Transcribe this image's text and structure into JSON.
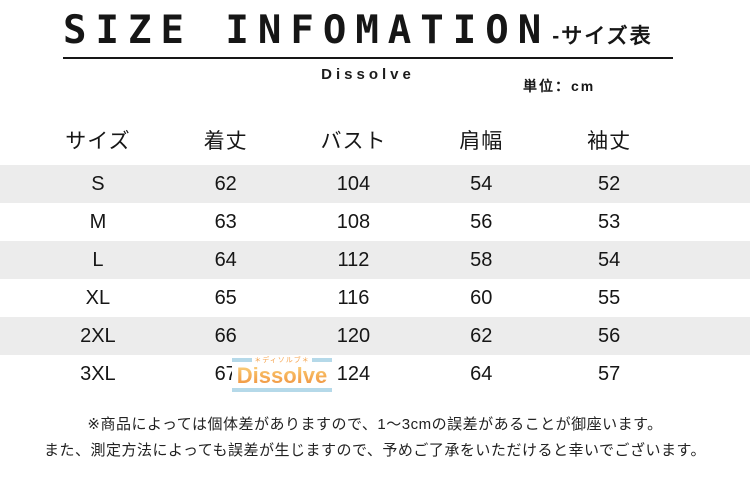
{
  "header": {
    "title": "SIZE INFOMATION",
    "title_suffix": "-サイズ表",
    "brand": "Dissolve",
    "unit_label": "単位：cm"
  },
  "table": {
    "columns": [
      "サイズ",
      "着丈",
      "バスト",
      "肩幅",
      "袖丈"
    ],
    "rows": [
      {
        "size": "S",
        "values": [
          "62",
          "104",
          "54",
          "52"
        ]
      },
      {
        "size": "M",
        "values": [
          "63",
          "108",
          "56",
          "53"
        ]
      },
      {
        "size": "L",
        "values": [
          "64",
          "112",
          "58",
          "54"
        ]
      },
      {
        "size": "XL",
        "values": [
          "65",
          "116",
          "60",
          "55"
        ]
      },
      {
        "size": "2XL",
        "values": [
          "66",
          "120",
          "62",
          "56"
        ]
      },
      {
        "size": "3XL",
        "values": [
          "67",
          "124",
          "64",
          "57"
        ]
      }
    ]
  },
  "watermark": {
    "small_text": "＊ディソルブ＊",
    "brand": "Dissolve"
  },
  "notes": {
    "line1": "※商品によっては個体差がありますので、1〜3cmの誤差があることが御座います。",
    "line2": "また、測定方法によっても誤差が生じますので、予めご了承をいただけると幸いでございます。"
  },
  "colors": {
    "row_stripe": "#ececec",
    "watermark_bar": "#b5d9e9",
    "watermark_small_text": "#f5a24a",
    "watermark_text_gradient_top": "#fbd989",
    "watermark_text_gradient_bottom": "#ee8a3a",
    "text": "#161616"
  }
}
